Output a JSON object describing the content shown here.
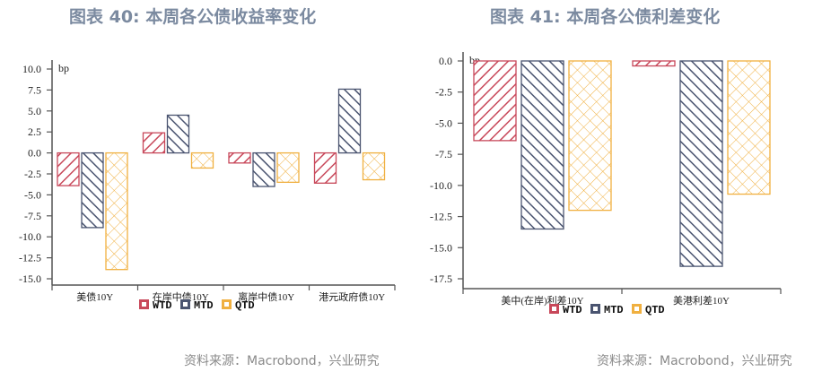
{
  "left": {
    "title": "图表 40: 本周各公债收益率变化",
    "source": "资料来源：Macrobond，兴业研究"
  },
  "right": {
    "title": "图表 41: 本周各公债利差变化",
    "source": "资料来源：Macrobond，兴业研究"
  },
  "colors": {
    "WTD": "#c8485a",
    "MTD": "#4a5470",
    "QTD": "#f0b040"
  },
  "chart_data": [
    {
      "type": "bar",
      "title": "图表 40: 本周各公债收益率变化",
      "ylabel": "bp",
      "categories": [
        "美债10Y",
        "在岸中债10Y",
        "离岸中债10Y",
        "港元政府债10Y"
      ],
      "series": [
        {
          "name": "WTD",
          "values": [
            -3.9,
            2.4,
            -1.2,
            -3.6
          ]
        },
        {
          "name": "MTD",
          "values": [
            -8.9,
            4.5,
            -4.0,
            7.6
          ]
        },
        {
          "name": "QTD",
          "values": [
            -13.9,
            -1.8,
            -3.5,
            -3.2
          ]
        }
      ],
      "ylim": [
        -15,
        10
      ],
      "yticks": [
        "10.0",
        "7.5",
        "5.0",
        "2.5",
        "0.0",
        "-2.5",
        "-5.0",
        "-7.5",
        "-10.0",
        "-12.5",
        "-15.0"
      ],
      "legend": [
        "WTD",
        "MTD",
        "QTD"
      ],
      "legend_position": "bottom",
      "grid": false
    },
    {
      "type": "bar",
      "title": "图表 41: 本周各公债利差变化",
      "ylabel": "bp",
      "categories": [
        "美中(在岸)利差10Y",
        "美港利差10Y"
      ],
      "series": [
        {
          "name": "WTD",
          "values": [
            -6.4,
            -0.4
          ]
        },
        {
          "name": "MTD",
          "values": [
            -13.5,
            -16.5
          ]
        },
        {
          "name": "QTD",
          "values": [
            -12.0,
            -10.7
          ]
        }
      ],
      "ylim": [
        -17.5,
        0
      ],
      "yticks": [
        "0.0",
        "-2.5",
        "-5.0",
        "-7.5",
        "-10.0",
        "-12.5",
        "-15.0",
        "-17.5"
      ],
      "legend": [
        "WTD",
        "MTD",
        "QTD"
      ],
      "legend_position": "bottom",
      "grid": false
    }
  ]
}
